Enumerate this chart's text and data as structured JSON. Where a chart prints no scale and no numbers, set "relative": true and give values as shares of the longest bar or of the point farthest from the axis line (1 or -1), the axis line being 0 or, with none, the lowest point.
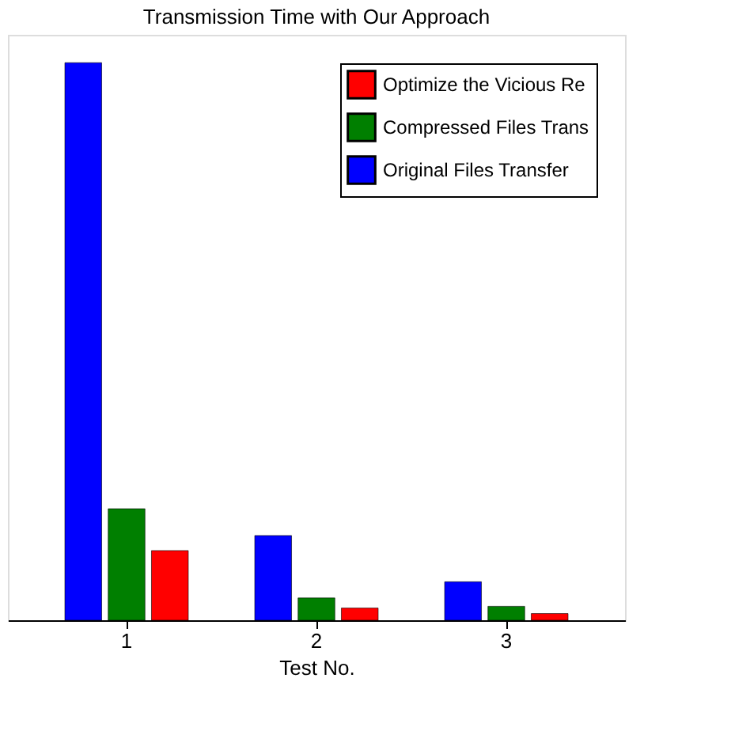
{
  "chart_data": {
    "type": "bar",
    "title": "Transmission Time with Our Approach",
    "xlabel": "Test No.",
    "categories": [
      "1",
      "2",
      "3"
    ],
    "relative": true,
    "series": [
      {
        "name": "Optimize the Vicious Re",
        "color": "#ff0000",
        "values": [
          0.125,
          0.022,
          0.012
        ]
      },
      {
        "name": "Compressed Files Trans",
        "color": "#007f00",
        "values": [
          0.2,
          0.04,
          0.025
        ]
      },
      {
        "name": "Original Files Transfer",
        "color": "#0000ff",
        "values": [
          1,
          0.152,
          0.069
        ]
      }
    ],
    "legend": "top right",
    "grid": false
  }
}
